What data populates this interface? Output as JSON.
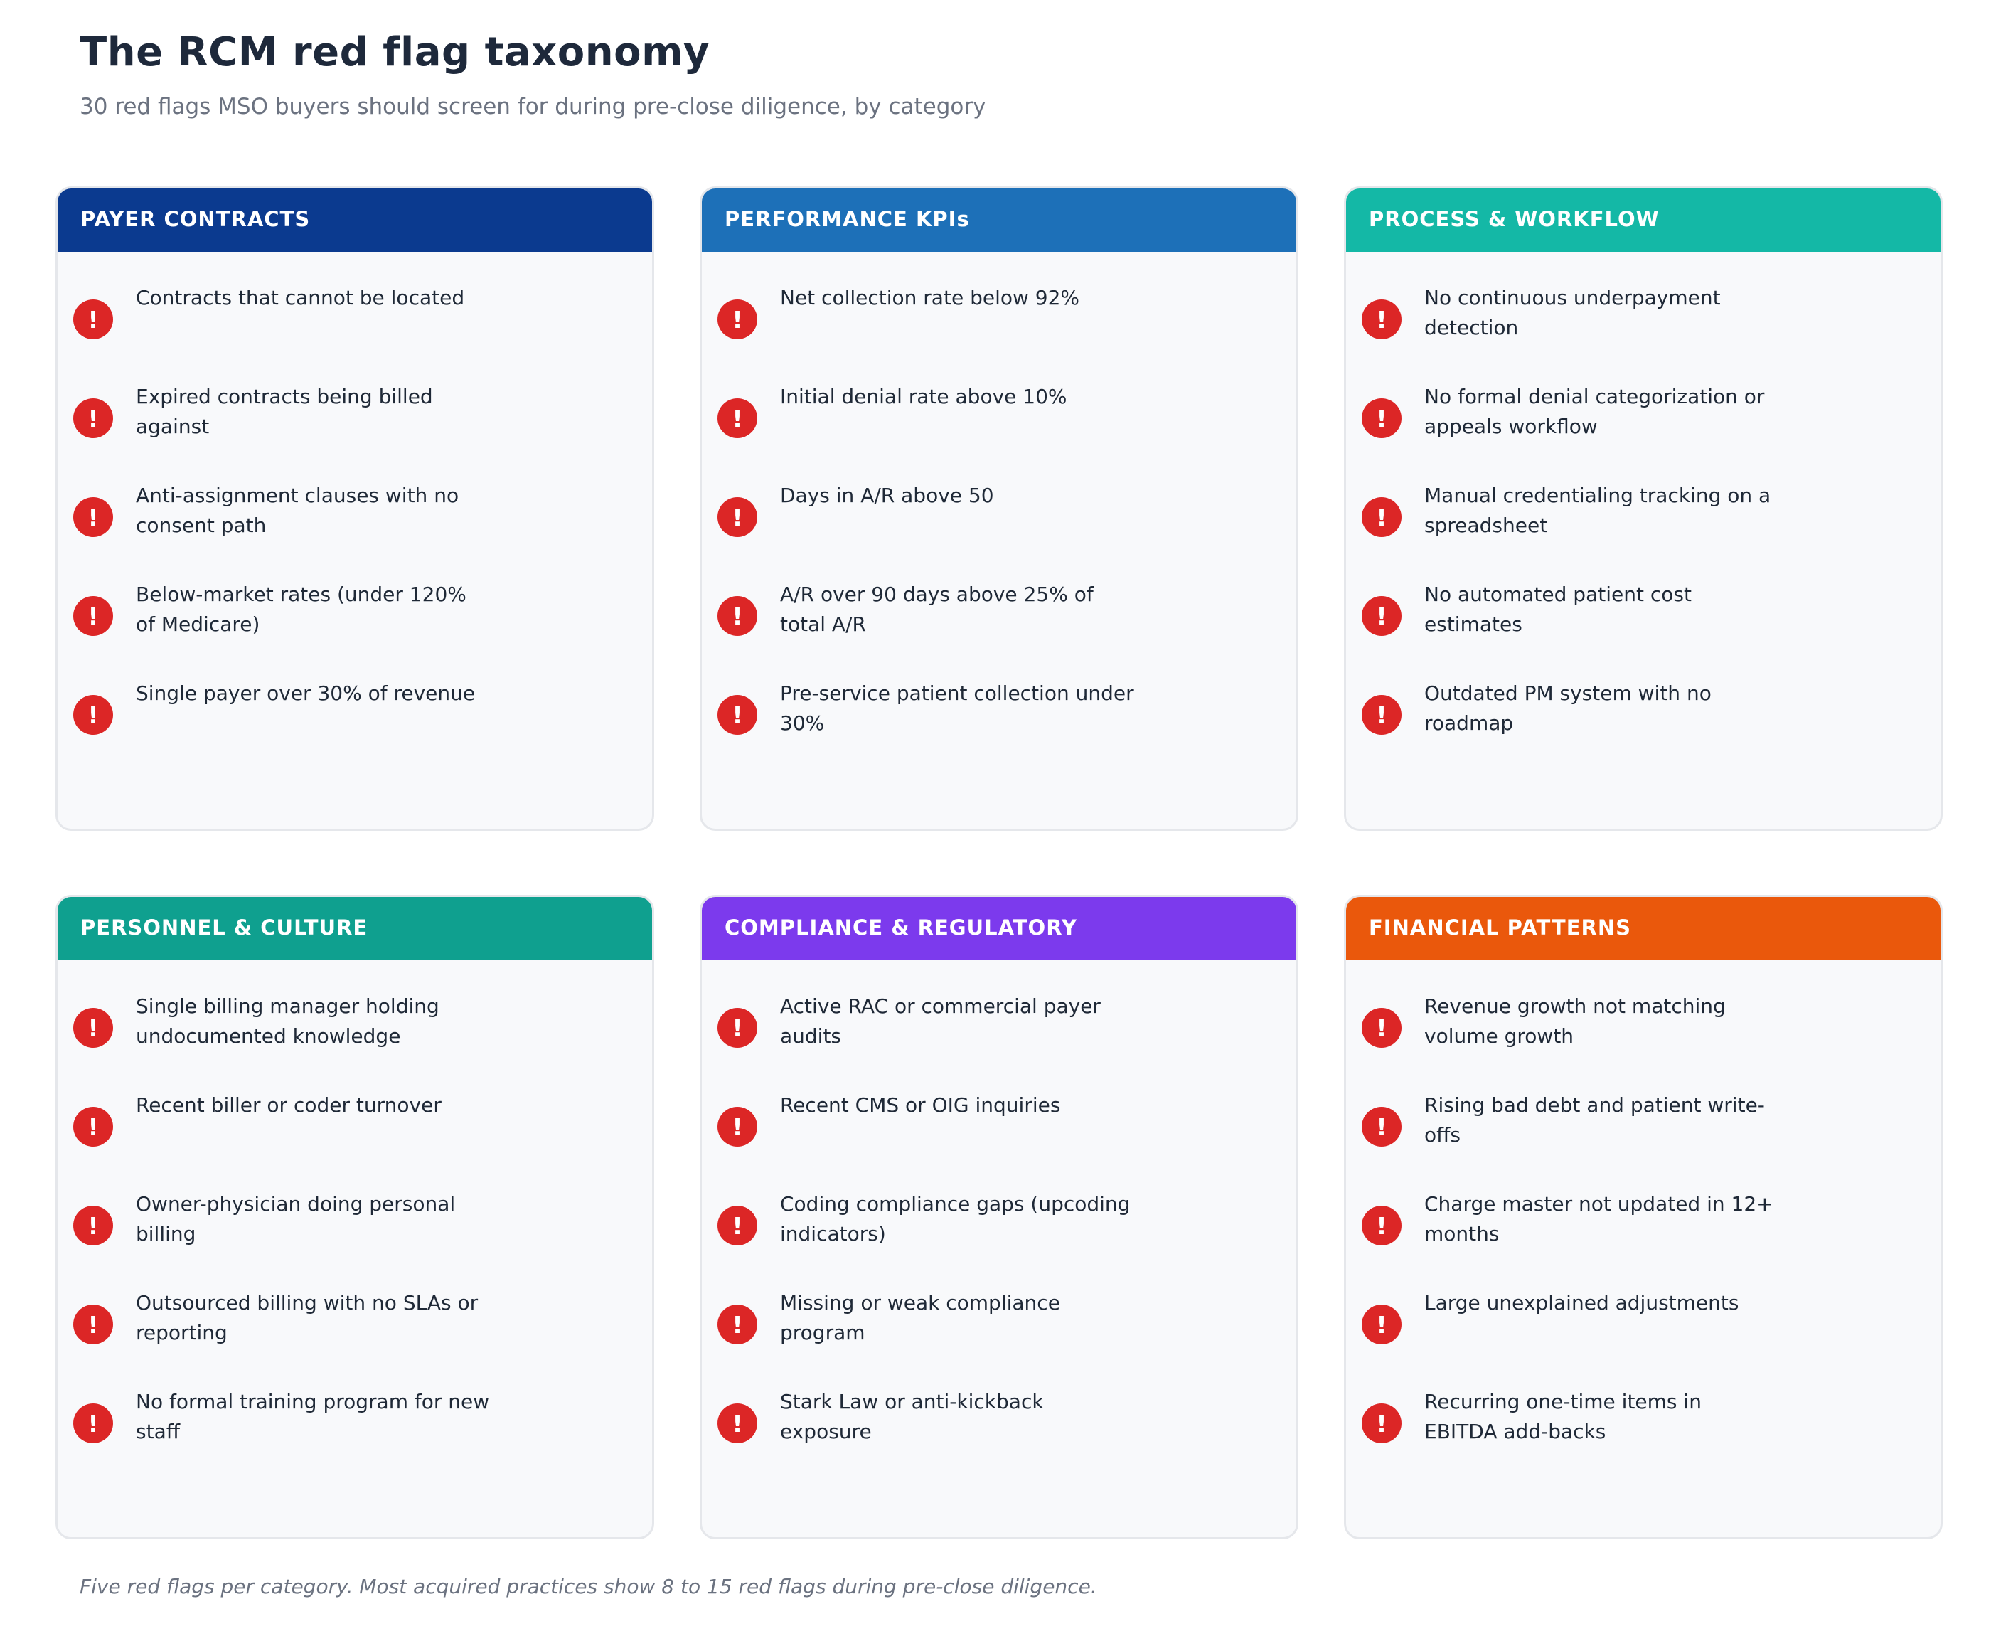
{
  "title": "The RCM red flag taxonomy",
  "subtitle": "30 red flags MSO buyers should screen for during pre-close diligence, by category",
  "flag_icon_glyph": "!",
  "flag_icon_name": "exclamation-icon",
  "flag_icon_color": "#dc2626",
  "categories": [
    {
      "title": "PAYER CONTRACTS",
      "color": "#0b3a8f",
      "flags": [
        "Contracts that cannot be located",
        "Expired contracts being billed against",
        "Anti-assignment clauses with no consent path",
        "Below-market rates (under 120% of Medicare)",
        "Single payer over 30% of revenue"
      ]
    },
    {
      "title": "PERFORMANCE KPIs",
      "color": "#1d70b8",
      "flags": [
        "Net collection rate below 92%",
        "Initial denial rate above 10%",
        "Days in A/R above 50",
        "A/R over 90 days above 25% of total A/R",
        "Pre-service patient collection under 30%"
      ]
    },
    {
      "title": "PROCESS & WORKFLOW",
      "color": "#14b8a6",
      "flags": [
        "No continuous underpayment detection",
        "No formal denial categorization or appeals workflow",
        "Manual credentialing tracking on a spreadsheet",
        "No automated patient cost estimates",
        "Outdated PM system with no roadmap"
      ]
    },
    {
      "title": "PERSONNEL & CULTURE",
      "color": "#0fa08f",
      "flags": [
        "Single billing manager holding undocumented knowledge",
        "Recent biller or coder turnover",
        "Owner-physician doing personal billing",
        "Outsourced billing with no SLAs or reporting",
        "No formal training program for new staff"
      ]
    },
    {
      "title": "COMPLIANCE & REGULATORY",
      "color": "#7c3aed",
      "flags": [
        "Active RAC or commercial payer audits",
        "Recent CMS or OIG inquiries",
        "Coding compliance gaps (upcoding indicators)",
        "Missing or weak compliance program",
        "Stark Law or anti-kickback exposure"
      ]
    },
    {
      "title": "FINANCIAL PATTERNS",
      "color": "#ea580c",
      "flags": [
        "Revenue growth not matching volume growth",
        "Rising bad debt and patient write-offs",
        "Charge master not updated in 12+ months",
        "Large unexplained adjustments",
        "Recurring one-time items in EBITDA add-backs"
      ]
    }
  ],
  "footnote": "Five red flags per category. Most acquired practices show 8 to 15 red flags during pre-close diligence."
}
